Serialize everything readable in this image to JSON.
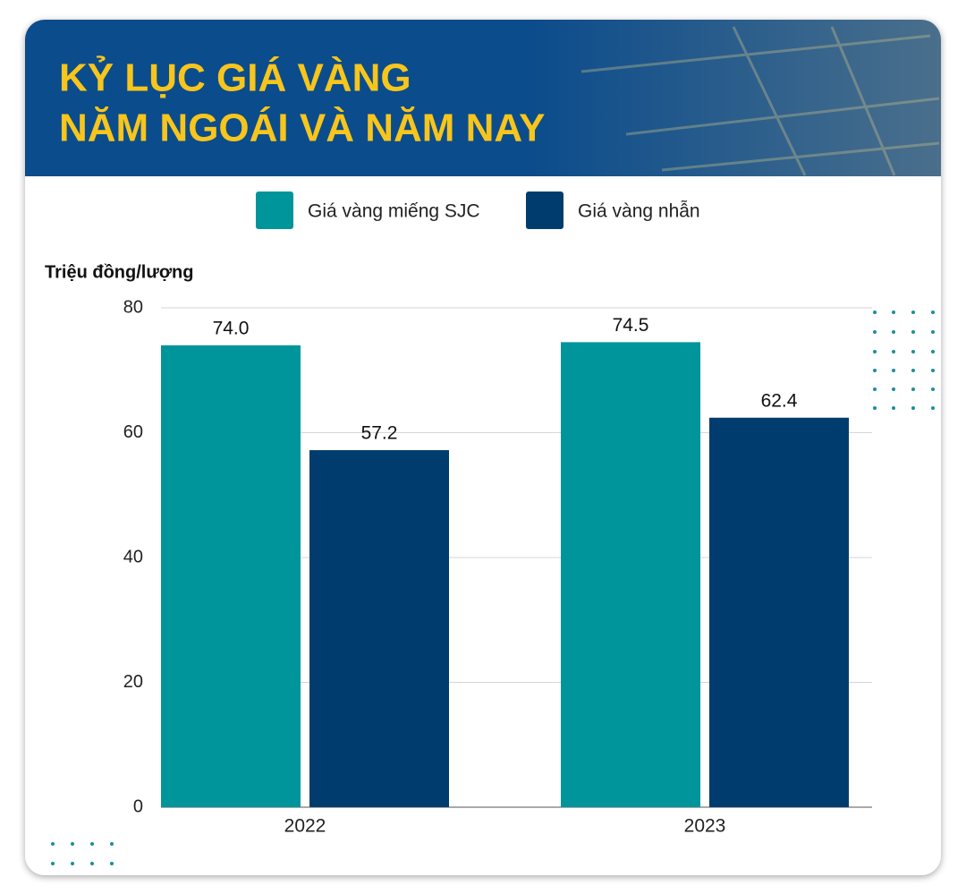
{
  "chart_data": {
    "type": "bar",
    "title": [
      "KỶ LỤC GIÁ VÀNG",
      "NĂM NGOÁI VÀ NĂM NAY"
    ],
    "y_label": "Triệu đồng/lượng",
    "categories": [
      "2022",
      "2023"
    ],
    "series": [
      {
        "name": "Giá vàng miếng SJC",
        "color": "#00959a",
        "values": [
          74,
          74.5
        ],
        "value_labels": [
          "74.0",
          "74.5"
        ]
      },
      {
        "name": "Giá vàng nhẫn",
        "color": "#003d6e",
        "values": [
          57.2,
          62.4
        ],
        "value_labels": [
          "57.2",
          "62.4"
        ]
      }
    ],
    "ylim": [
      0,
      80
    ],
    "yticks": [
      0,
      20,
      40,
      60,
      80
    ],
    "grid": true,
    "legend": "top"
  }
}
